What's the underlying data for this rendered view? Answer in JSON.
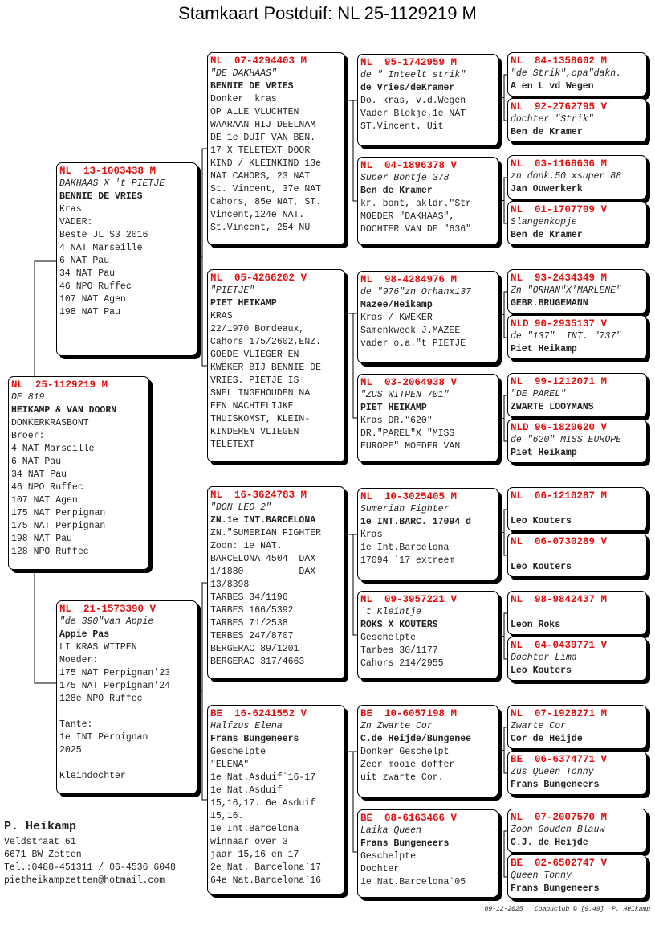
{
  "title": "Stamkaart Postduif: NL  25-1129219 M",
  "colors": {
    "ring": "#e01010",
    "border": "#000000",
    "shadow": "#000000"
  },
  "subject": {
    "ring": "NL  25-1129219 M",
    "name": "DE 819",
    "owner": "HEIKAMP & VAN DOORN",
    "lines": [
      "DONKERKRASBONT",
      "Broer:",
      "4 NAT Marseille",
      "6 NAT Pau",
      "34 NAT Pau",
      "46 NPO Ruffec",
      "107 NAT Agen",
      "175 NAT Perpignan",
      "175 NAT Perpignan",
      "198 NAT Pau",
      "128 NPO Ruffec"
    ]
  },
  "father": {
    "ring": "NL  13-1003438 M",
    "name": "DAKHAAS X 't PIETJE",
    "owner": "BENNIE DE VRIES",
    "lines": [
      "Kras",
      "VADER:",
      "Beste JL S3 2016",
      "4 NAT Marseille",
      "6 NAT Pau",
      "34 NAT Pau",
      "46 NPO Ruffec",
      "107 NAT Agen",
      "198 NAT Pau"
    ]
  },
  "mother": {
    "ring": "NL  21-1573390 V",
    "name": "\"de 390\"van Appie",
    "owner": "Appie Pas",
    "lines": [
      "LI KRAS WITPEN",
      "Moeder:",
      "175 NAT Perpignan'23",
      "175 NAT Perpignan'24",
      "128e NPO Ruffec",
      "",
      "Tante:",
      "1e INT Perpignan",
      "2025",
      "",
      "Kleindochter"
    ]
  },
  "g3": [
    {
      "ring": "NL  07-4294403 M",
      "name": "\"DE DAKHAAS\"",
      "owner": "BENNIE DE VRIES",
      "lines": [
        "Donker  kras",
        "OP ALLE VLUCHTEN",
        "WAARAAN HIJ DEELNAM",
        "DE 1e DUIF VAN BEN.",
        "17 X TELETEXT DOOR",
        "KIND / KLEINKIND 13e",
        "NAT CAHORS, 23 NAT",
        "St. Vincent, 37e NAT",
        "Cahors, 85e NAT, ST.",
        "Vincent,124e NAT.",
        "St.Vincent, 254 NU"
      ]
    },
    {
      "ring": "NL  05-4266202 V",
      "name": "\"PIETJE\"",
      "owner": "PIET HEIKAMP",
      "lines": [
        "KRAS",
        "22/1970 Bordeaux,",
        "Cahors 175/2602,ENZ.",
        "GOEDE VLIEGER EN",
        "KWEKER BIJ BENNIE DE",
        "VRIES. PIETJE IS",
        "SNEL INGEHOUDEN NA",
        "EEN NACHTELIJKE",
        "THUISKOMST, KLEIN-",
        "KINDEREN VLIEGEN",
        "TELETEXT"
      ]
    },
    {
      "ring": "NL  16-3624783 M",
      "name": "\"DON LEO 2\"",
      "owner": "ZN.1e INT.BARCELONA",
      "lines": [
        "ZN.\"SUMERIAN FIGHTER",
        "Zoon: 1e NAT.",
        "BARCELONA 4504  DAX",
        "1/1880          DAX",
        "13/8398",
        "TARBES 34/1196",
        "TARBES 166/5392",
        "TARBES 71/2538",
        "TERBES 247/8707",
        "BERGERAC 89/1201",
        "BERGERAC 317/4663"
      ]
    },
    {
      "ring": "BE  16-6241552 V",
      "name": "Halfzus Elena",
      "owner": "Frans Bungeneers",
      "lines": [
        "Geschelpte",
        "\"ELENA\"",
        "1e Nat.Asduif`16-17",
        "1e Nat.Asduif",
        "15,16,17. 6e Asduif",
        "15,16.",
        "1e Int.Barcelona",
        "winnaar over 3",
        "jaar 15,16 en 17",
        "2e Nat. Barcelona`17",
        "64e Nat.Barcelona`16"
      ]
    }
  ],
  "g4": [
    {
      "ring": "NL  95-1742959 M",
      "name": "de \" Inteelt strik\"",
      "owner": "de Vries/deKramer",
      "lines": [
        "Do. kras, v.d.Wegen",
        "Vader Blokje,1e NAT",
        "ST.Vincent. Uit"
      ]
    },
    {
      "ring": "NL  04-1896378 V",
      "name": "Super Bontje 378",
      "owner": "Ben de Kramer",
      "lines": [
        "kr. bont, akldr.\"Str",
        "MOEDER \"DAKHAAS\",",
        "DOCHTER VAN DE \"636\""
      ]
    },
    {
      "ring": "NL  98-4284976 M",
      "name": "de \"976\"zn Orhanx137",
      "owner": "Mazee/Heikamp",
      "lines": [
        "Kras / KWEKER",
        "Samenkweek J.MAZEE",
        "vader o.a.\"t PIETJE"
      ]
    },
    {
      "ring": "NL  03-2064938 V",
      "name": "\"ZUS WITPEN 701\"",
      "owner": "PIET HEIKAMP",
      "lines": [
        "Kras DR.\"620\"",
        "DR.\"PAREL\"X \"MISS",
        "EUROPE\" MOEDER VAN"
      ]
    },
    {
      "ring": "NL  10-3025405 M",
      "name": "Sumerian Fighter",
      "owner": "1e INT.BARC. 17094 d",
      "lines": [
        "Kras",
        "1e Int.Barcelona",
        "17094 `17 extreem"
      ]
    },
    {
      "ring": "NL  09-3957221 V",
      "name": "`t Kleintje",
      "owner": "ROKS X KOUTERS",
      "lines": [
        "Geschelpte",
        "Tarbes 30/1177",
        "Cahors 214/2955"
      ]
    },
    {
      "ring": "BE  10-6057198 M",
      "name": "Zn Zwarte Cor",
      "owner": "C.de Heijde/Bungenee",
      "lines": [
        "Donker Geschelpt",
        "Zeer mooie doffer",
        "uit zwarte Cor."
      ]
    },
    {
      "ring": "BE  08-6163466 V",
      "name": "Laika Queen",
      "owner": "Frans Bungeneers",
      "lines": [
        "Geschelpte",
        "Dochter",
        "1e Nat.Barcelona`05"
      ]
    }
  ],
  "g5": [
    {
      "ring": "NL  84-1358602 M",
      "name": "\"de Strik\",opa\"dakh.",
      "owner": "A en L vd Wegen"
    },
    {
      "ring": "NL  92-2762795 V",
      "name": "dochter \"Strik\"",
      "owner": "Ben de Kramer"
    },
    {
      "ring": "NL  03-1168636 M",
      "name": "zn donk.50 xsuper 88",
      "owner": "Jan Ouwerkerk"
    },
    {
      "ring": "NL  01-1707709 V",
      "name": "Slangenkopje",
      "owner": "Ben de Kramer"
    },
    {
      "ring": "NL  93-2434349 M",
      "name": "Zn \"ORHAN\"X'MARLENE\"",
      "owner": "GEBR.BRUGEMANN"
    },
    {
      "ring": "NLD 90-2935137 V",
      "name": "de \"137\"  INT. \"737\"",
      "owner": "Piet Heikamp"
    },
    {
      "ring": "NL  99-1212071 M",
      "name": "\"DE PAREL\"",
      "owner": "ZWARTE LOOYMANS"
    },
    {
      "ring": "NLD 96-1820620 V",
      "name": "de \"620\" MISS EUROPE",
      "owner": "Piet Heikamp"
    },
    {
      "ring": "NL  06-1210287 M",
      "name": "",
      "owner": "Leo Kouters"
    },
    {
      "ring": "NL  06-0730289 V",
      "name": "",
      "owner": "Leo Kouters"
    },
    {
      "ring": "NL  98-9842437 M",
      "name": "",
      "owner": "Leon Roks"
    },
    {
      "ring": "NL  04-0439771 V",
      "name": "Dochter Lima",
      "owner": "Leo Kouters"
    },
    {
      "ring": "NL  07-1928271 M",
      "name": "Zwarte Cor",
      "owner": "Cor de Heijde"
    },
    {
      "ring": "BE  06-6374771 V",
      "name": "Zus Queen Tonny",
      "owner": "Frans Bungeneers"
    },
    {
      "ring": "NL  07-2007570 M",
      "name": "Zoon Gouden Blauw",
      "owner": "C.J. de Heijde"
    },
    {
      "ring": "BE  02-6502747 V",
      "name": "Queen Tonny",
      "owner": "Frans Bungeneers"
    }
  ],
  "breeder": {
    "name": "P. Heikamp",
    "address": "Veldstraat 61",
    "city": "6671 BW  Zetten",
    "phone": "Tel.:0488-451311 / 06-4536 6048",
    "email": "pietheikampzetten@hotmail.com"
  },
  "footer": "09-12-2025   Compuclub © [9.49]  P. Heikamp"
}
